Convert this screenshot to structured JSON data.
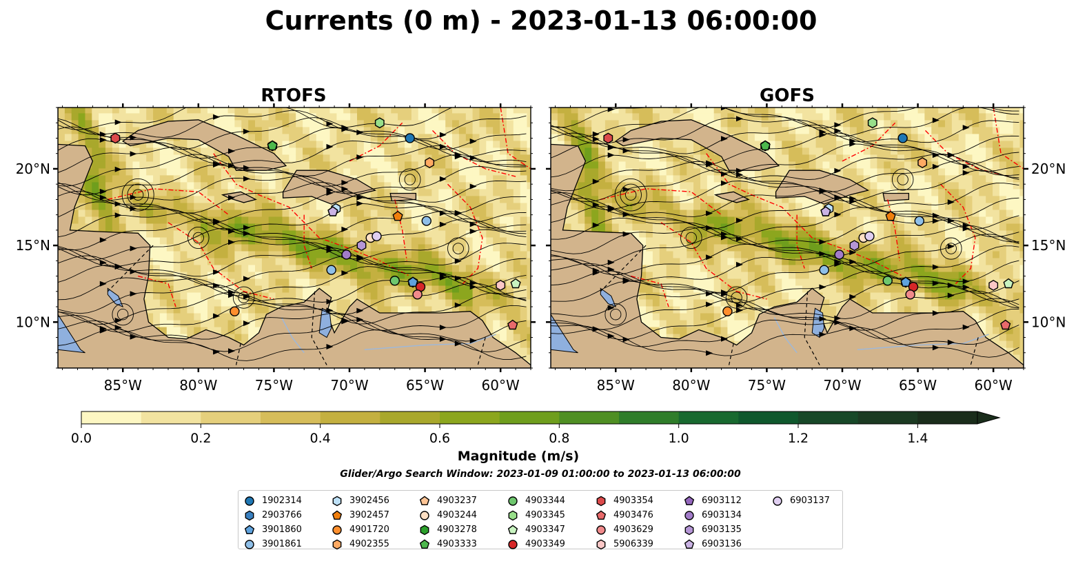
{
  "figure": {
    "title": "Currents (0 m) - 2023-01-13 06:00:00",
    "panels": [
      {
        "title": "RTOFS"
      },
      {
        "title": "GOFS"
      }
    ],
    "lon_ticks": [
      "85°W",
      "80°W",
      "75°W",
      "70°W",
      "65°W",
      "60°W"
    ],
    "lat_ticks": [
      "20°N",
      "15°N",
      "10°N"
    ],
    "colorbar": {
      "label": "Magnitude (m/s)",
      "tick_labels": [
        "0.0",
        "0.2",
        "0.4",
        "0.6",
        "0.8",
        "1.0",
        "1.2",
        "1.4"
      ],
      "colors": [
        "#fdf7c3",
        "#f2e3a0",
        "#e5cf7c",
        "#d6bd5a",
        "#c4b040",
        "#a9a82c",
        "#8ca61e",
        "#6f9e1d",
        "#4f8f23",
        "#2f7d2a",
        "#18692f",
        "#0f582d",
        "#174828",
        "#1b3a22",
        "#1a2d1b"
      ],
      "extend": "max"
    },
    "search_window": "Glider/Argo Search Window: 2023-01-09 01:00:00 to 2023-01-13 06:00:00",
    "land_color": "#d2b48c",
    "lake_color": "#8fb0de",
    "eez_line_color": "#ff0000"
  },
  "legend": [
    {
      "id": "1902314",
      "marker": "circle",
      "color": "#1f77b4"
    },
    {
      "id": "2903766",
      "marker": "hexagon",
      "color": "#3a80c0"
    },
    {
      "id": "3901860",
      "marker": "pentagon",
      "color": "#5fa2dd"
    },
    {
      "id": "3901861",
      "marker": "circle",
      "color": "#8fbfe8"
    },
    {
      "id": "3902456",
      "marker": "hexagon",
      "color": "#bde0f7"
    },
    {
      "id": "3902457",
      "marker": "pentagon",
      "color": "#f07f0e"
    },
    {
      "id": "4901720",
      "marker": "circle",
      "color": "#ff8f2e"
    },
    {
      "id": "4902355",
      "marker": "hexagon",
      "color": "#ffaa63"
    },
    {
      "id": "4903237",
      "marker": "pentagon",
      "color": "#ffc596"
    },
    {
      "id": "4903244",
      "marker": "circle",
      "color": "#ffe0c4"
    },
    {
      "id": "4903278",
      "marker": "hexagon",
      "color": "#2ca02c"
    },
    {
      "id": "4903333",
      "marker": "pentagon",
      "color": "#4db84d"
    },
    {
      "id": "4903344",
      "marker": "circle",
      "color": "#6ec76e"
    },
    {
      "id": "4903345",
      "marker": "hexagon",
      "color": "#98df8a"
    },
    {
      "id": "4903347",
      "marker": "pentagon",
      "color": "#c8f3c0"
    },
    {
      "id": "4903349",
      "marker": "circle",
      "color": "#d62728"
    },
    {
      "id": "4903354",
      "marker": "hexagon",
      "color": "#dc4a4b"
    },
    {
      "id": "4903476",
      "marker": "pentagon",
      "color": "#e86a6b"
    },
    {
      "id": "4903629",
      "marker": "circle",
      "color": "#f08a8b"
    },
    {
      "id": "5906339",
      "marker": "hexagon",
      "color": "#fbc7c6"
    },
    {
      "id": "6903112",
      "marker": "pentagon",
      "color": "#9467bd"
    },
    {
      "id": "6903134",
      "marker": "circle",
      "color": "#a27cc9"
    },
    {
      "id": "6903135",
      "marker": "hexagon",
      "color": "#b596d6"
    },
    {
      "id": "6903136",
      "marker": "pentagon",
      "color": "#cab3e4"
    },
    {
      "id": "6903137",
      "marker": "circle",
      "color": "#e0cff1"
    }
  ],
  "floats": [
    {
      "id": "1902314",
      "lon": -66.0,
      "lat": 22.0
    },
    {
      "id": "2903766",
      "lon": -65.8,
      "lat": 12.6
    },
    {
      "id": "3901860",
      "lon": -65.8,
      "lat": 12.6
    },
    {
      "id": "3901861",
      "lon": -64.9,
      "lat": 16.6
    },
    {
      "id": "3902456",
      "lon": -70.9,
      "lat": 17.4
    },
    {
      "id": "3902457",
      "lon": -66.8,
      "lat": 16.9
    },
    {
      "id": "4901720",
      "lon": -77.6,
      "lat": 10.7
    },
    {
      "id": "4902355",
      "lon": -64.7,
      "lat": 20.4
    },
    {
      "id": "4903244",
      "lon": -68.6,
      "lat": 15.5
    },
    {
      "id": "4903278",
      "lon": -75.1,
      "lat": 21.5
    },
    {
      "id": "4903333",
      "lon": -75.1,
      "lat": 21.5
    },
    {
      "id": "4903344",
      "lon": -67.0,
      "lat": 12.7
    },
    {
      "id": "4903345",
      "lon": -68.0,
      "lat": 23.0
    },
    {
      "id": "4903347",
      "lon": -59.0,
      "lat": 12.5
    },
    {
      "id": "4903349",
      "lon": -65.3,
      "lat": 12.3
    },
    {
      "id": "4903354",
      "lon": -85.5,
      "lat": 22.0
    },
    {
      "id": "4903476",
      "lon": -59.2,
      "lat": 9.8
    },
    {
      "id": "4903629",
      "lon": -65.5,
      "lat": 11.8
    },
    {
      "id": "5906339",
      "lon": -60.0,
      "lat": 12.4
    },
    {
      "id": "6903112",
      "lon": -71.1,
      "lat": 17.2
    },
    {
      "id": "6903134",
      "lon": -70.2,
      "lat": 14.4
    },
    {
      "id": "6903135",
      "lon": -69.2,
      "lat": 15.0
    },
    {
      "id": "6903136",
      "lon": -71.1,
      "lat": 17.2
    },
    {
      "id": "6903137",
      "lon": -68.2,
      "lat": 15.6
    },
    {
      "id": "3901861",
      "lon": -71.2,
      "lat": 13.4
    }
  ]
}
